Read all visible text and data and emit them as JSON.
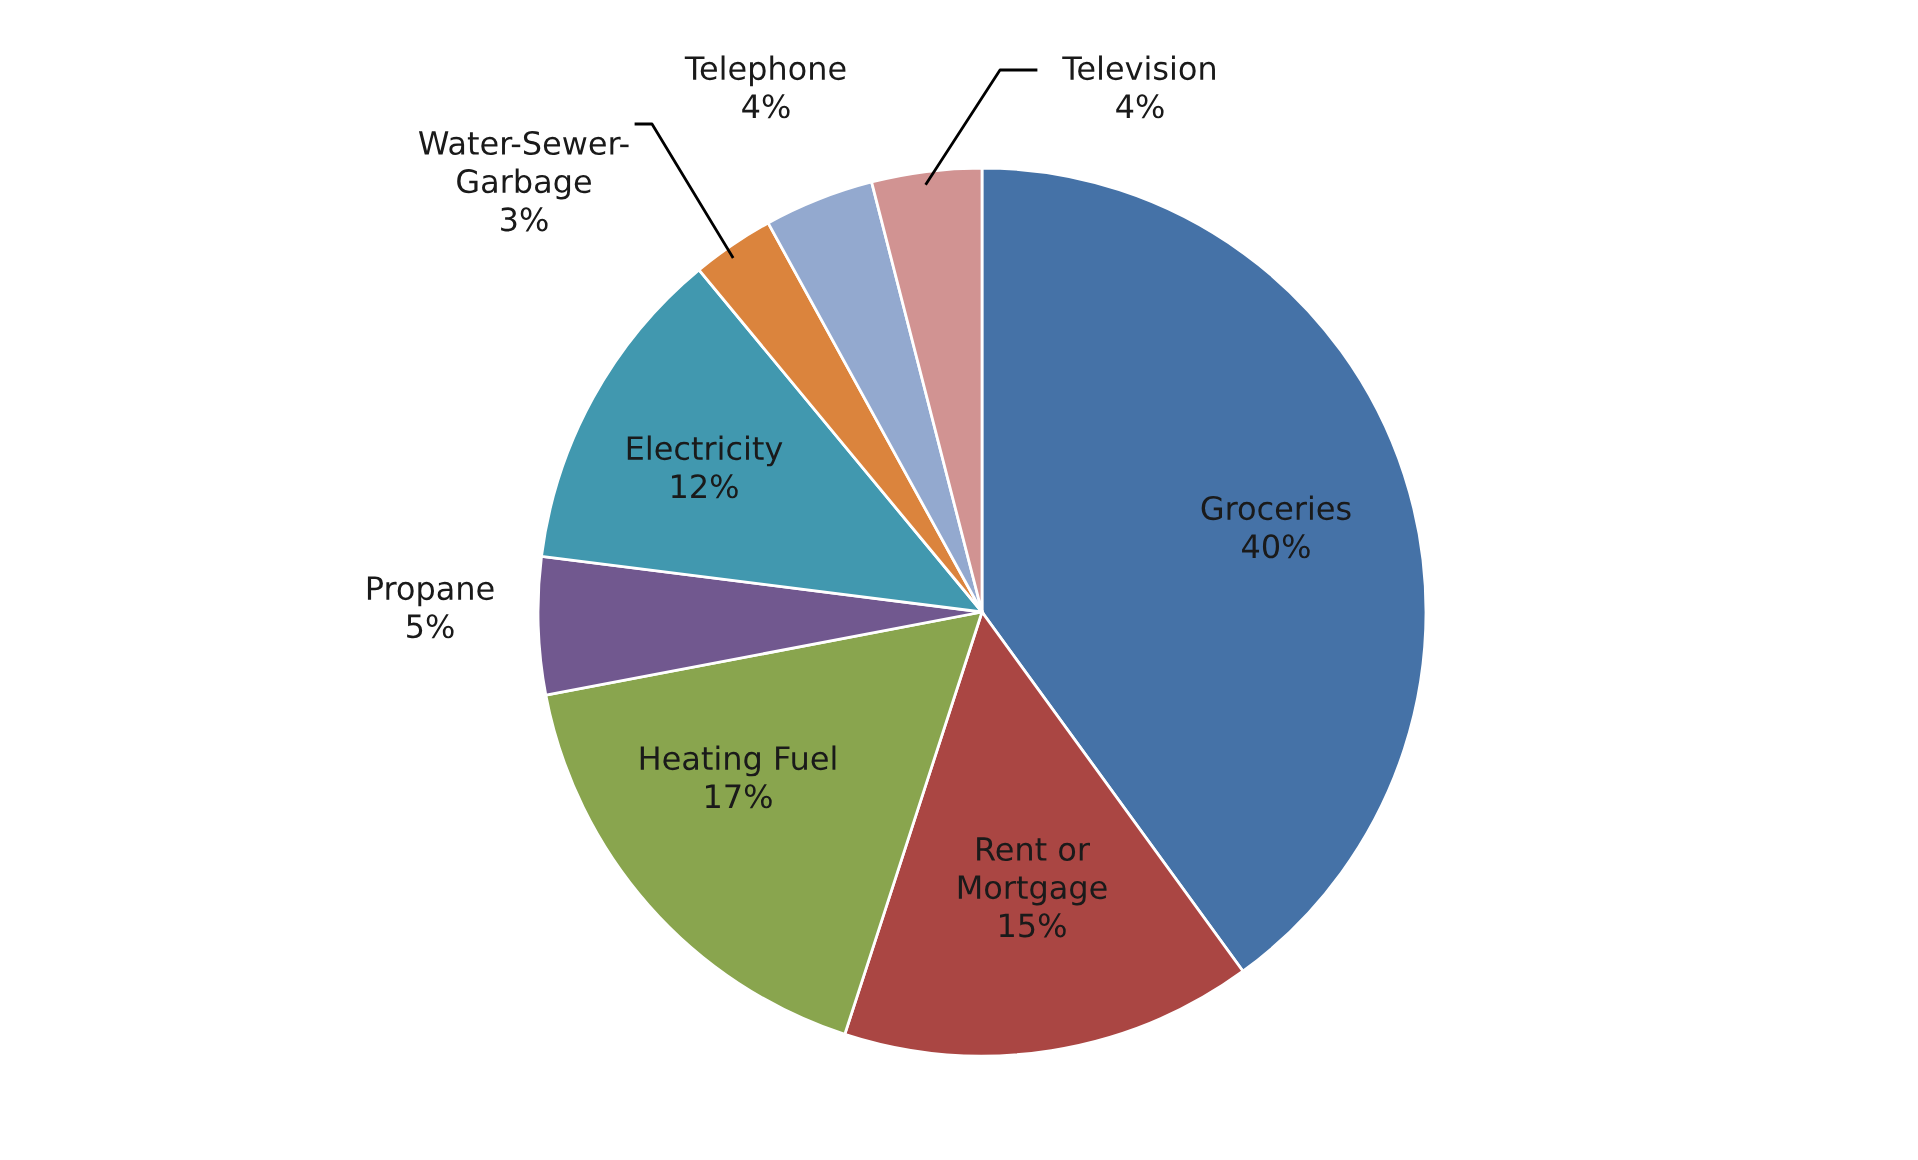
{
  "chart_data": {
    "type": "pie",
    "categories": [
      "Groceries",
      "Rent or\nMortgage",
      "Heating Fuel",
      "Propane",
      "Electricity",
      "Water-Sewer-\nGarbage",
      "Telephone",
      "Television"
    ],
    "values": [
      40,
      15,
      17,
      5,
      12,
      3,
      4,
      4
    ],
    "value_labels": [
      "40%",
      "15%",
      "17%",
      "5%",
      "12%",
      "3%",
      "4%",
      "4%"
    ],
    "colors": [
      "#4572a7",
      "#aa4643",
      "#89a54e",
      "#71588f",
      "#4198af",
      "#db843d",
      "#93a9cf",
      "#d19392"
    ],
    "legend": false
  }
}
